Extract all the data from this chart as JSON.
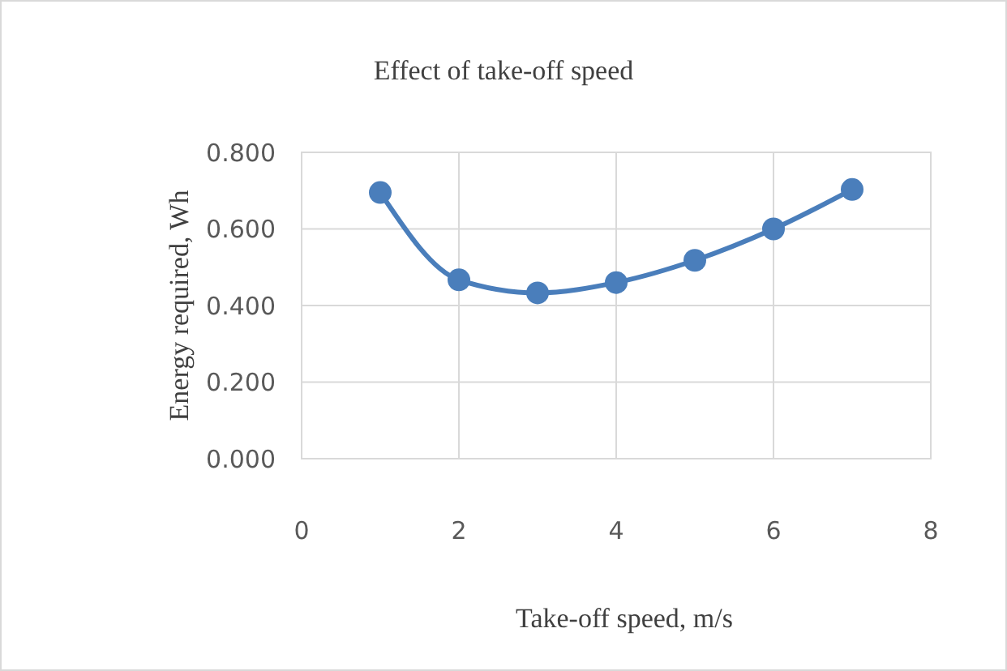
{
  "chart_data": {
    "type": "line",
    "title": "Effect of take-off speed",
    "xlabel": "Take-off speed, m/s",
    "ylabel": "Energy required, Wh",
    "x": [
      1,
      2,
      3,
      4,
      5,
      6,
      7
    ],
    "series": [
      {
        "color": "#4a7ebb",
        "values": [
          0.695,
          0.467,
          0.433,
          0.46,
          0.518,
          0.6,
          0.703
        ]
      }
    ],
    "xlim": [
      0,
      8
    ],
    "xticks": [
      0,
      2,
      4,
      6,
      8
    ],
    "ylim": [
      0,
      0.8
    ],
    "yticks": [
      {
        "value": 0,
        "label": "0.000"
      },
      {
        "value": 0.2,
        "label": "0.200"
      },
      {
        "value": 0.4,
        "label": "0.400"
      },
      {
        "value": 0.6,
        "label": "0.600"
      },
      {
        "value": 0.8,
        "label": "0.800"
      }
    ],
    "grid": true,
    "marker": "circle",
    "line_style": "solid"
  }
}
